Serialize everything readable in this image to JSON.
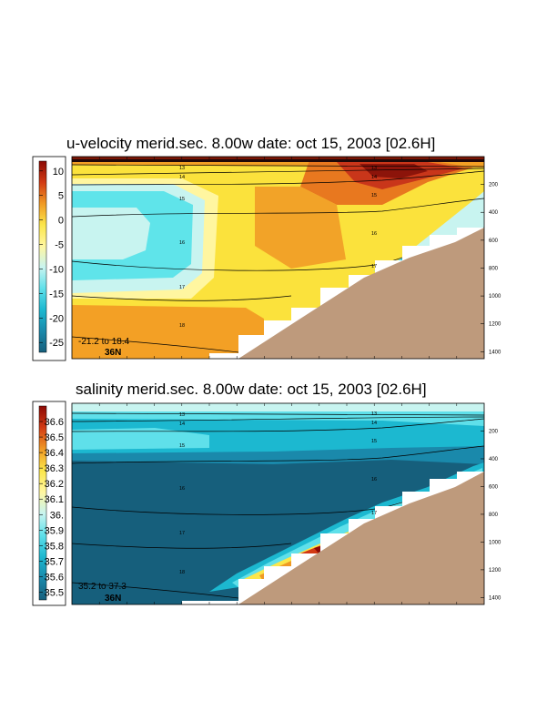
{
  "chart_data": [
    {
      "type": "heatmap",
      "title": "u-velocity merid.sec.  8.00w   date: oct 15, 2003   [02.6H]",
      "variable": "u-velocity",
      "colorbar": {
        "ticks": [
          "10",
          "5",
          "0",
          "-5",
          "-10",
          "-15",
          "-20",
          "-25"
        ],
        "range": [
          -27,
          12
        ],
        "colors": [
          "#8c0a05",
          "#d23a14",
          "#f09a24",
          "#fbe64a",
          "#fff6a0",
          "#c8f4f0",
          "#5fe0ea",
          "#1cb8d0",
          "#1a89ab",
          "#165f7c"
        ]
      },
      "depth_ticks": [
        "200",
        "400",
        "600",
        "800",
        "1000",
        "1200",
        "1400"
      ],
      "depth_range": [
        0,
        1450
      ],
      "isopycnal_labels": [
        "13",
        "14",
        "15",
        "16",
        "17",
        "18"
      ],
      "range_note": "-21.2 to  18.4",
      "latitude_label": "36N"
    },
    {
      "type": "heatmap",
      "title": "salinity merid.sec.  8.00w   date: oct 15, 2003   [02.6H]",
      "variable": "salinity",
      "colorbar": {
        "ticks": [
          "36.6",
          "36.5",
          "36.4",
          "36.3",
          "36.2",
          "36.1",
          "36.",
          "35.9",
          "35.8",
          "35.7",
          "35.6",
          "35.5"
        ],
        "range": [
          35.45,
          36.7
        ],
        "colors": [
          "#8c0a05",
          "#d23a14",
          "#f09a24",
          "#fbe64a",
          "#fff6a0",
          "#c8f4f0",
          "#5fe0ea",
          "#1cb8d0",
          "#1a89ab",
          "#165f7c"
        ]
      },
      "depth_ticks": [
        "200",
        "400",
        "600",
        "800",
        "1000",
        "1200",
        "1400"
      ],
      "depth_range": [
        0,
        1450
      ],
      "isopycnal_labels": [
        "13",
        "14",
        "15",
        "16",
        "17",
        "18"
      ],
      "range_note": "35.2 to  37.3",
      "latitude_label": "36N"
    }
  ]
}
